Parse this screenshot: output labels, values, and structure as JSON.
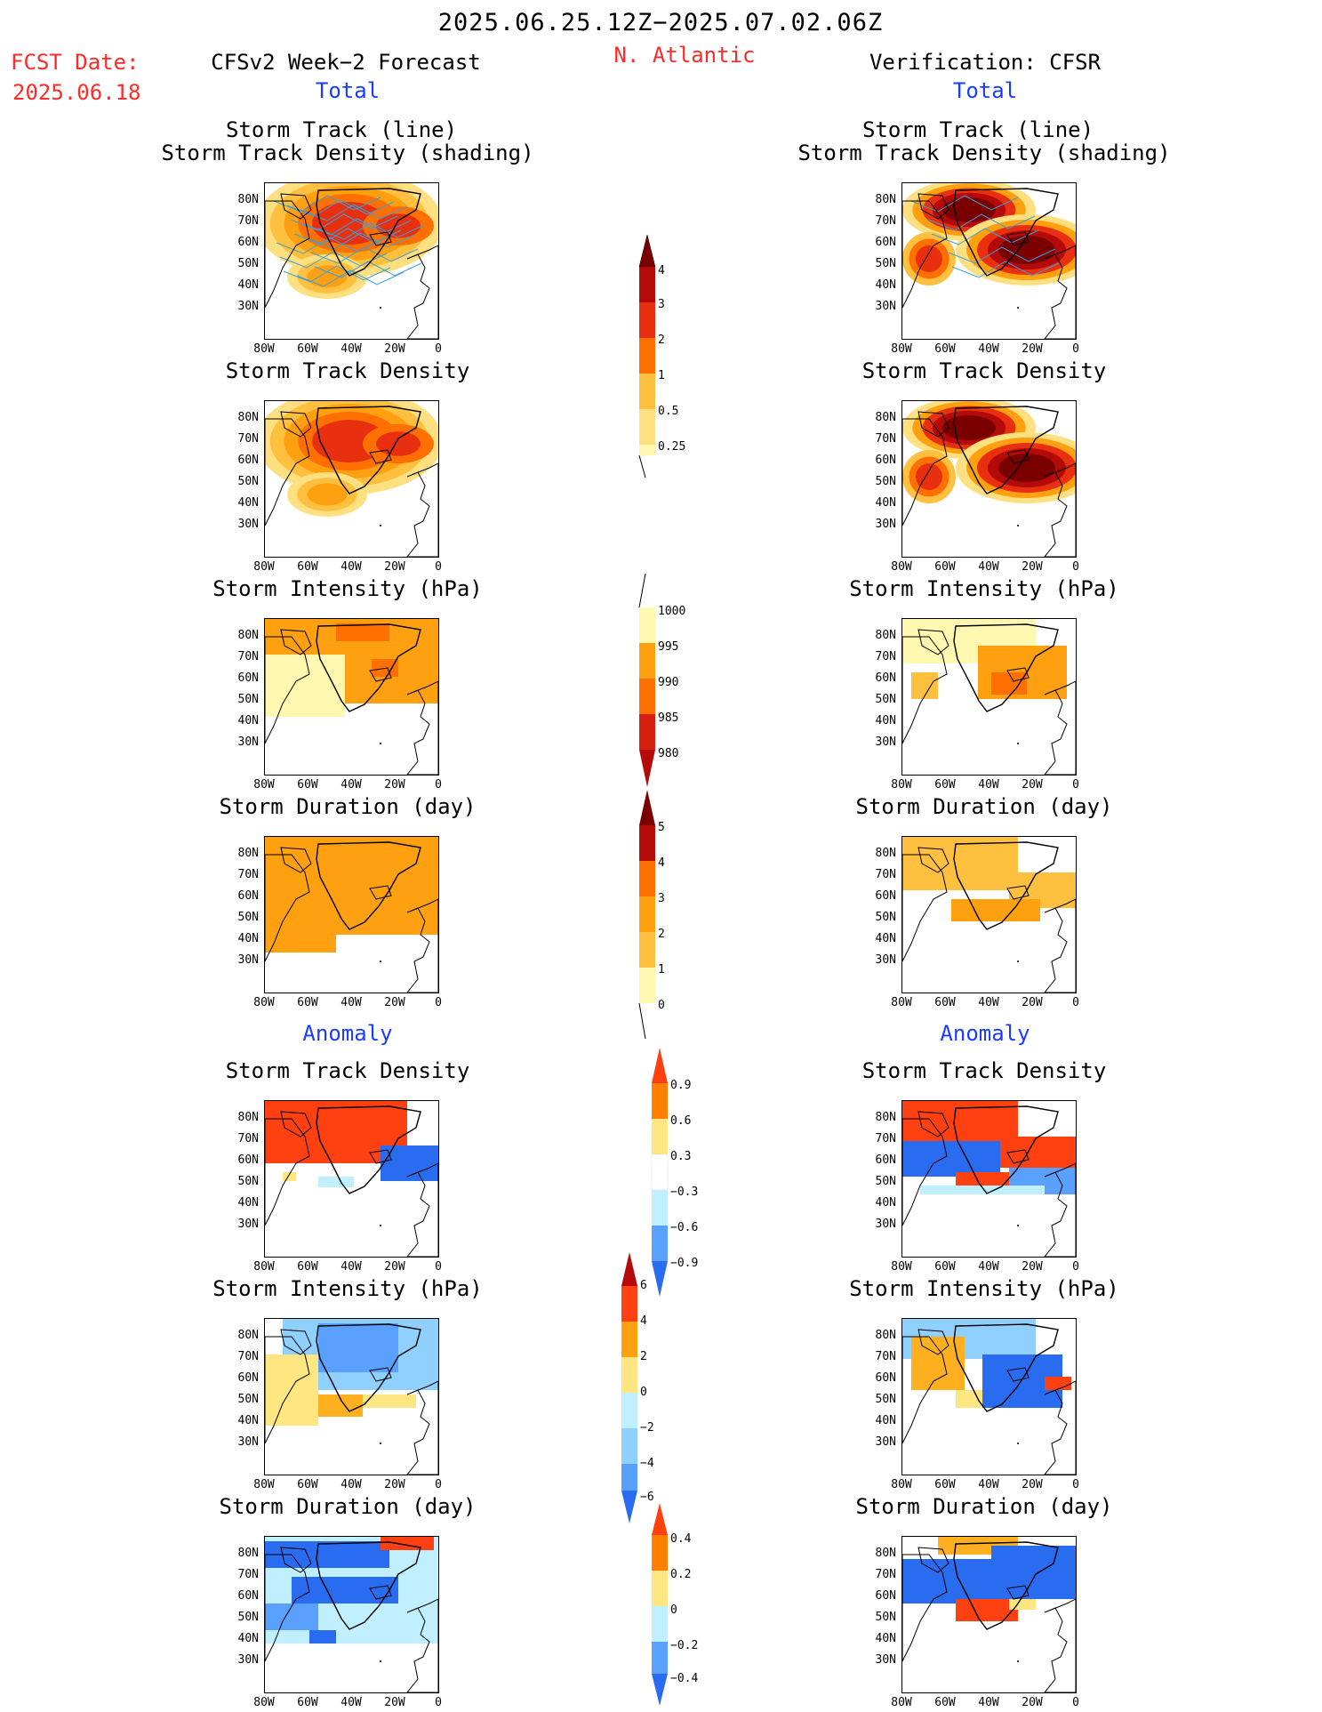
{
  "header": {
    "period": "2025.06.25.12Z−2025.07.02.06Z",
    "fcst_label": "FCST Date:",
    "fcst_date": "2025.06.18",
    "left_title": "CFSv2 Week−2 Forecast",
    "region": "N. Atlantic",
    "right_title": "Verification: CFSR",
    "left_total": "Total",
    "right_total": "Total",
    "left_anomaly": "Anomaly",
    "right_anomaly": "Anomaly"
  },
  "panels": {
    "track_line_1": "Storm Track (line)",
    "track_line_2": "Storm Track Density (shading)",
    "density": "Storm Track Density",
    "intensity": "Storm Intensity (hPa)",
    "duration": "Storm Duration (day)"
  },
  "axes": {
    "lat": [
      "80N",
      "70N",
      "60N",
      "50N",
      "40N",
      "30N"
    ],
    "lon": [
      "80W",
      "60W",
      "40W",
      "20W",
      "0"
    ]
  },
  "colorbars": {
    "density": [
      "4",
      "3",
      "2",
      "1",
      "0.5",
      "0.25"
    ],
    "intensity": [
      "1000",
      "995",
      "990",
      "985",
      "980"
    ],
    "duration": [
      "5",
      "4",
      "3",
      "2",
      "1",
      "0"
    ],
    "density_anom": [
      "0.9",
      "0.6",
      "0.3",
      "−0.3",
      "−0.6",
      "−0.9"
    ],
    "intensity_anom": [
      "6",
      "4",
      "2",
      "0",
      "−2",
      "−4",
      "−6"
    ],
    "duration_anom": [
      "0.4",
      "0.2",
      "0",
      "−0.2",
      "−0.4"
    ]
  },
  "colors": {
    "red": "#ff2a2a",
    "blue": "#1a3cff",
    "track": "#3aa0d8",
    "warm": [
      "#fff8b0",
      "#ffe080",
      "#ffc040",
      "#ffa010",
      "#ff7000",
      "#e83010",
      "#b40a0a",
      "#7a0000"
    ],
    "cool": [
      "#c0f0ff",
      "#90d0ff",
      "#5aa0ff",
      "#2a6cef",
      "#1a50d0"
    ],
    "anom_warm": [
      "#ffe680",
      "#ffb020",
      "#ff8000",
      "#ff4010",
      "#e02000"
    ]
  }
}
